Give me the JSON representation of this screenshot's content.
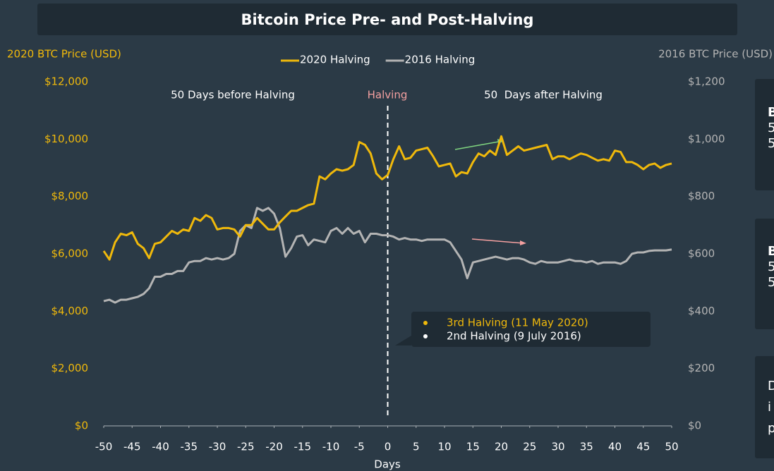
{
  "chart_data": {
    "type": "line",
    "title": "Bitcoin Price Pre- and Post-Halving",
    "y_label": "2020 BTC Price (USD)",
    "y2_label": "2016 BTC Price (USD)",
    "x_label": "Days",
    "legend": "top",
    "grid": false,
    "annotations": [
      "50 Days before Halving",
      "Halving",
      "50  Days after Halving"
    ],
    "tooltip": [
      "3rd Halving (11 May 2020)",
      "2nd Halving (9 July 2016)"
    ],
    "side_panels": [
      [
        "B",
        "5",
        "5"
      ],
      [
        "B",
        "5",
        "5"
      ],
      [
        "D",
        "i",
        "p"
      ]
    ],
    "x": [
      -50,
      -49,
      -48,
      -47,
      -46,
      -45,
      -44,
      -43,
      -42,
      -41,
      -40,
      -39,
      -38,
      -37,
      -36,
      -35,
      -34,
      -33,
      -32,
      -31,
      -30,
      -29,
      -28,
      -27,
      -26,
      -25,
      -24,
      -23,
      -22,
      -21,
      -20,
      -19,
      -18,
      -17,
      -16,
      -15,
      -14,
      -13,
      -12,
      -11,
      -10,
      -9,
      -8,
      -7,
      -6,
      -5,
      -4,
      -3,
      -2,
      -1,
      0,
      1,
      2,
      3,
      4,
      5,
      6,
      7,
      8,
      9,
      10,
      11,
      12,
      13,
      14,
      15,
      16,
      17,
      18,
      19,
      20,
      21,
      22,
      23,
      24,
      25,
      26,
      27,
      28,
      29,
      30,
      31,
      32,
      33,
      34,
      35,
      36,
      37,
      38,
      39,
      40,
      41,
      42,
      43,
      44,
      45,
      46,
      47,
      48,
      49,
      50
    ],
    "xlim": [
      -50,
      50
    ],
    "xticks": [
      -50,
      -45,
      -40,
      -35,
      -30,
      -25,
      -20,
      -15,
      -10,
      -5,
      0,
      5,
      10,
      15,
      20,
      25,
      30,
      35,
      40,
      45,
      50
    ],
    "ylim": [
      0,
      12000
    ],
    "yticks": [
      {
        "value": 0,
        "label": "$0"
      },
      {
        "value": 2000,
        "label": "$2,000"
      },
      {
        "value": 4000,
        "label": "$4,000"
      },
      {
        "value": 6000,
        "label": "$6,000"
      },
      {
        "value": 8000,
        "label": "$8,000"
      },
      {
        "value": 10000,
        "label": "$10,000"
      },
      {
        "value": 12000,
        "label": "$12,000"
      }
    ],
    "y2lim": [
      0,
      1200
    ],
    "y2ticks": [
      {
        "value": 0,
        "label": "$0"
      },
      {
        "value": 200,
        "label": "$200"
      },
      {
        "value": 400,
        "label": "$400"
      },
      {
        "value": 600,
        "label": "$600"
      },
      {
        "value": 800,
        "label": "$800"
      },
      {
        "value": 1000,
        "label": "$1,000"
      },
      {
        "value": 1200,
        "label": "$1,200"
      }
    ],
    "series": [
      {
        "name": "2020 Halving",
        "color": "#f0b90b",
        "values": [
          6100,
          5800,
          6400,
          6700,
          6650,
          6750,
          6350,
          6200,
          5850,
          6350,
          6400,
          6600,
          6800,
          6700,
          6850,
          6800,
          7250,
          7150,
          7350,
          7250,
          6850,
          6900,
          6900,
          6850,
          6600,
          7000,
          7000,
          7250,
          7050,
          6850,
          6850,
          7100,
          7300,
          7500,
          7500,
          7600,
          7700,
          7750,
          8700,
          8600,
          8800,
          8950,
          8900,
          8950,
          9100,
          9900,
          9800,
          9500,
          8800,
          8600,
          8750,
          9300,
          9750,
          9300,
          9350,
          9600,
          9650,
          9700,
          9400,
          9050,
          9100,
          9150,
          8700,
          8850,
          8800,
          9200,
          9500,
          9400,
          9600,
          9450,
          10100,
          9450,
          9600,
          9750,
          9600,
          9650,
          9700,
          9750,
          9800,
          9300,
          9400,
          9400,
          9300,
          9400,
          9500,
          9450,
          9350,
          9250,
          9300,
          9250,
          9600,
          9550,
          9200,
          9200,
          9100,
          8950,
          9100,
          9150,
          9000,
          9100,
          9150
        ]
      },
      {
        "name": "2016 Halving",
        "color": "#b4b4b4",
        "axis": "y2",
        "values": [
          435,
          440,
          430,
          440,
          440,
          445,
          450,
          460,
          480,
          520,
          520,
          530,
          530,
          540,
          540,
          570,
          575,
          575,
          585,
          580,
          585,
          580,
          585,
          600,
          680,
          700,
          690,
          760,
          750,
          760,
          740,
          690,
          590,
          620,
          660,
          665,
          630,
          650,
          645,
          640,
          680,
          690,
          670,
          690,
          670,
          680,
          640,
          670,
          670,
          665,
          665,
          660,
          650,
          655,
          650,
          650,
          645,
          650,
          650,
          650,
          650,
          640,
          610,
          580,
          515,
          570,
          575,
          580,
          585,
          590,
          585,
          580,
          585,
          585,
          580,
          570,
          565,
          575,
          570,
          570,
          570,
          575,
          580,
          575,
          575,
          570,
          575,
          565,
          570,
          570,
          570,
          565,
          575,
          600,
          605,
          605,
          610,
          612,
          612,
          612,
          615
        ]
      }
    ]
  }
}
